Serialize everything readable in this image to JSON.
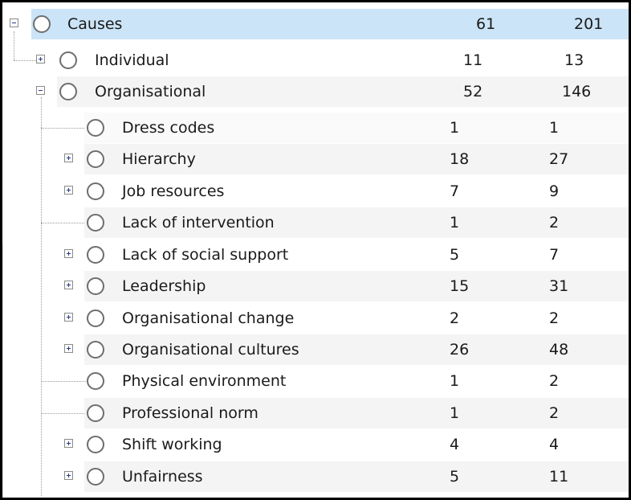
{
  "root": {
    "label": "Causes",
    "count1": "61",
    "count2": "201",
    "expanded": true
  },
  "children": [
    {
      "label": "Individual",
      "count1": "11",
      "count2": "13",
      "toggle": "plus"
    },
    {
      "label": "Organisational",
      "count1": "52",
      "count2": "146",
      "toggle": "minus"
    }
  ],
  "organisational_children": [
    {
      "label": "Dress codes",
      "count1": "1",
      "count2": "1",
      "toggle": "none"
    },
    {
      "label": "Hierarchy",
      "count1": "18",
      "count2": "27",
      "toggle": "plus"
    },
    {
      "label": "Job resources",
      "count1": "7",
      "count2": "9",
      "toggle": "plus"
    },
    {
      "label": "Lack of intervention",
      "count1": "1",
      "count2": "2",
      "toggle": "none"
    },
    {
      "label": "Lack of social support",
      "count1": "5",
      "count2": "7",
      "toggle": "plus"
    },
    {
      "label": "Leadership",
      "count1": "15",
      "count2": "31",
      "toggle": "plus"
    },
    {
      "label": "Organisational change",
      "count1": "2",
      "count2": "2",
      "toggle": "plus"
    },
    {
      "label": "Organisational cultures",
      "count1": "26",
      "count2": "48",
      "toggle": "plus"
    },
    {
      "label": "Physical environment",
      "count1": "1",
      "count2": "2",
      "toggle": "none"
    },
    {
      "label": "Professional norm",
      "count1": "1",
      "count2": "2",
      "toggle": "none"
    },
    {
      "label": "Shift working",
      "count1": "4",
      "count2": "4",
      "toggle": "plus"
    },
    {
      "label": "Unfairness",
      "count1": "5",
      "count2": "11",
      "toggle": "plus"
    }
  ],
  "colors": {
    "selected": "#cce4f7",
    "alternate": "#f4f4f4",
    "toggle_glyph": "#2b3a8c"
  }
}
